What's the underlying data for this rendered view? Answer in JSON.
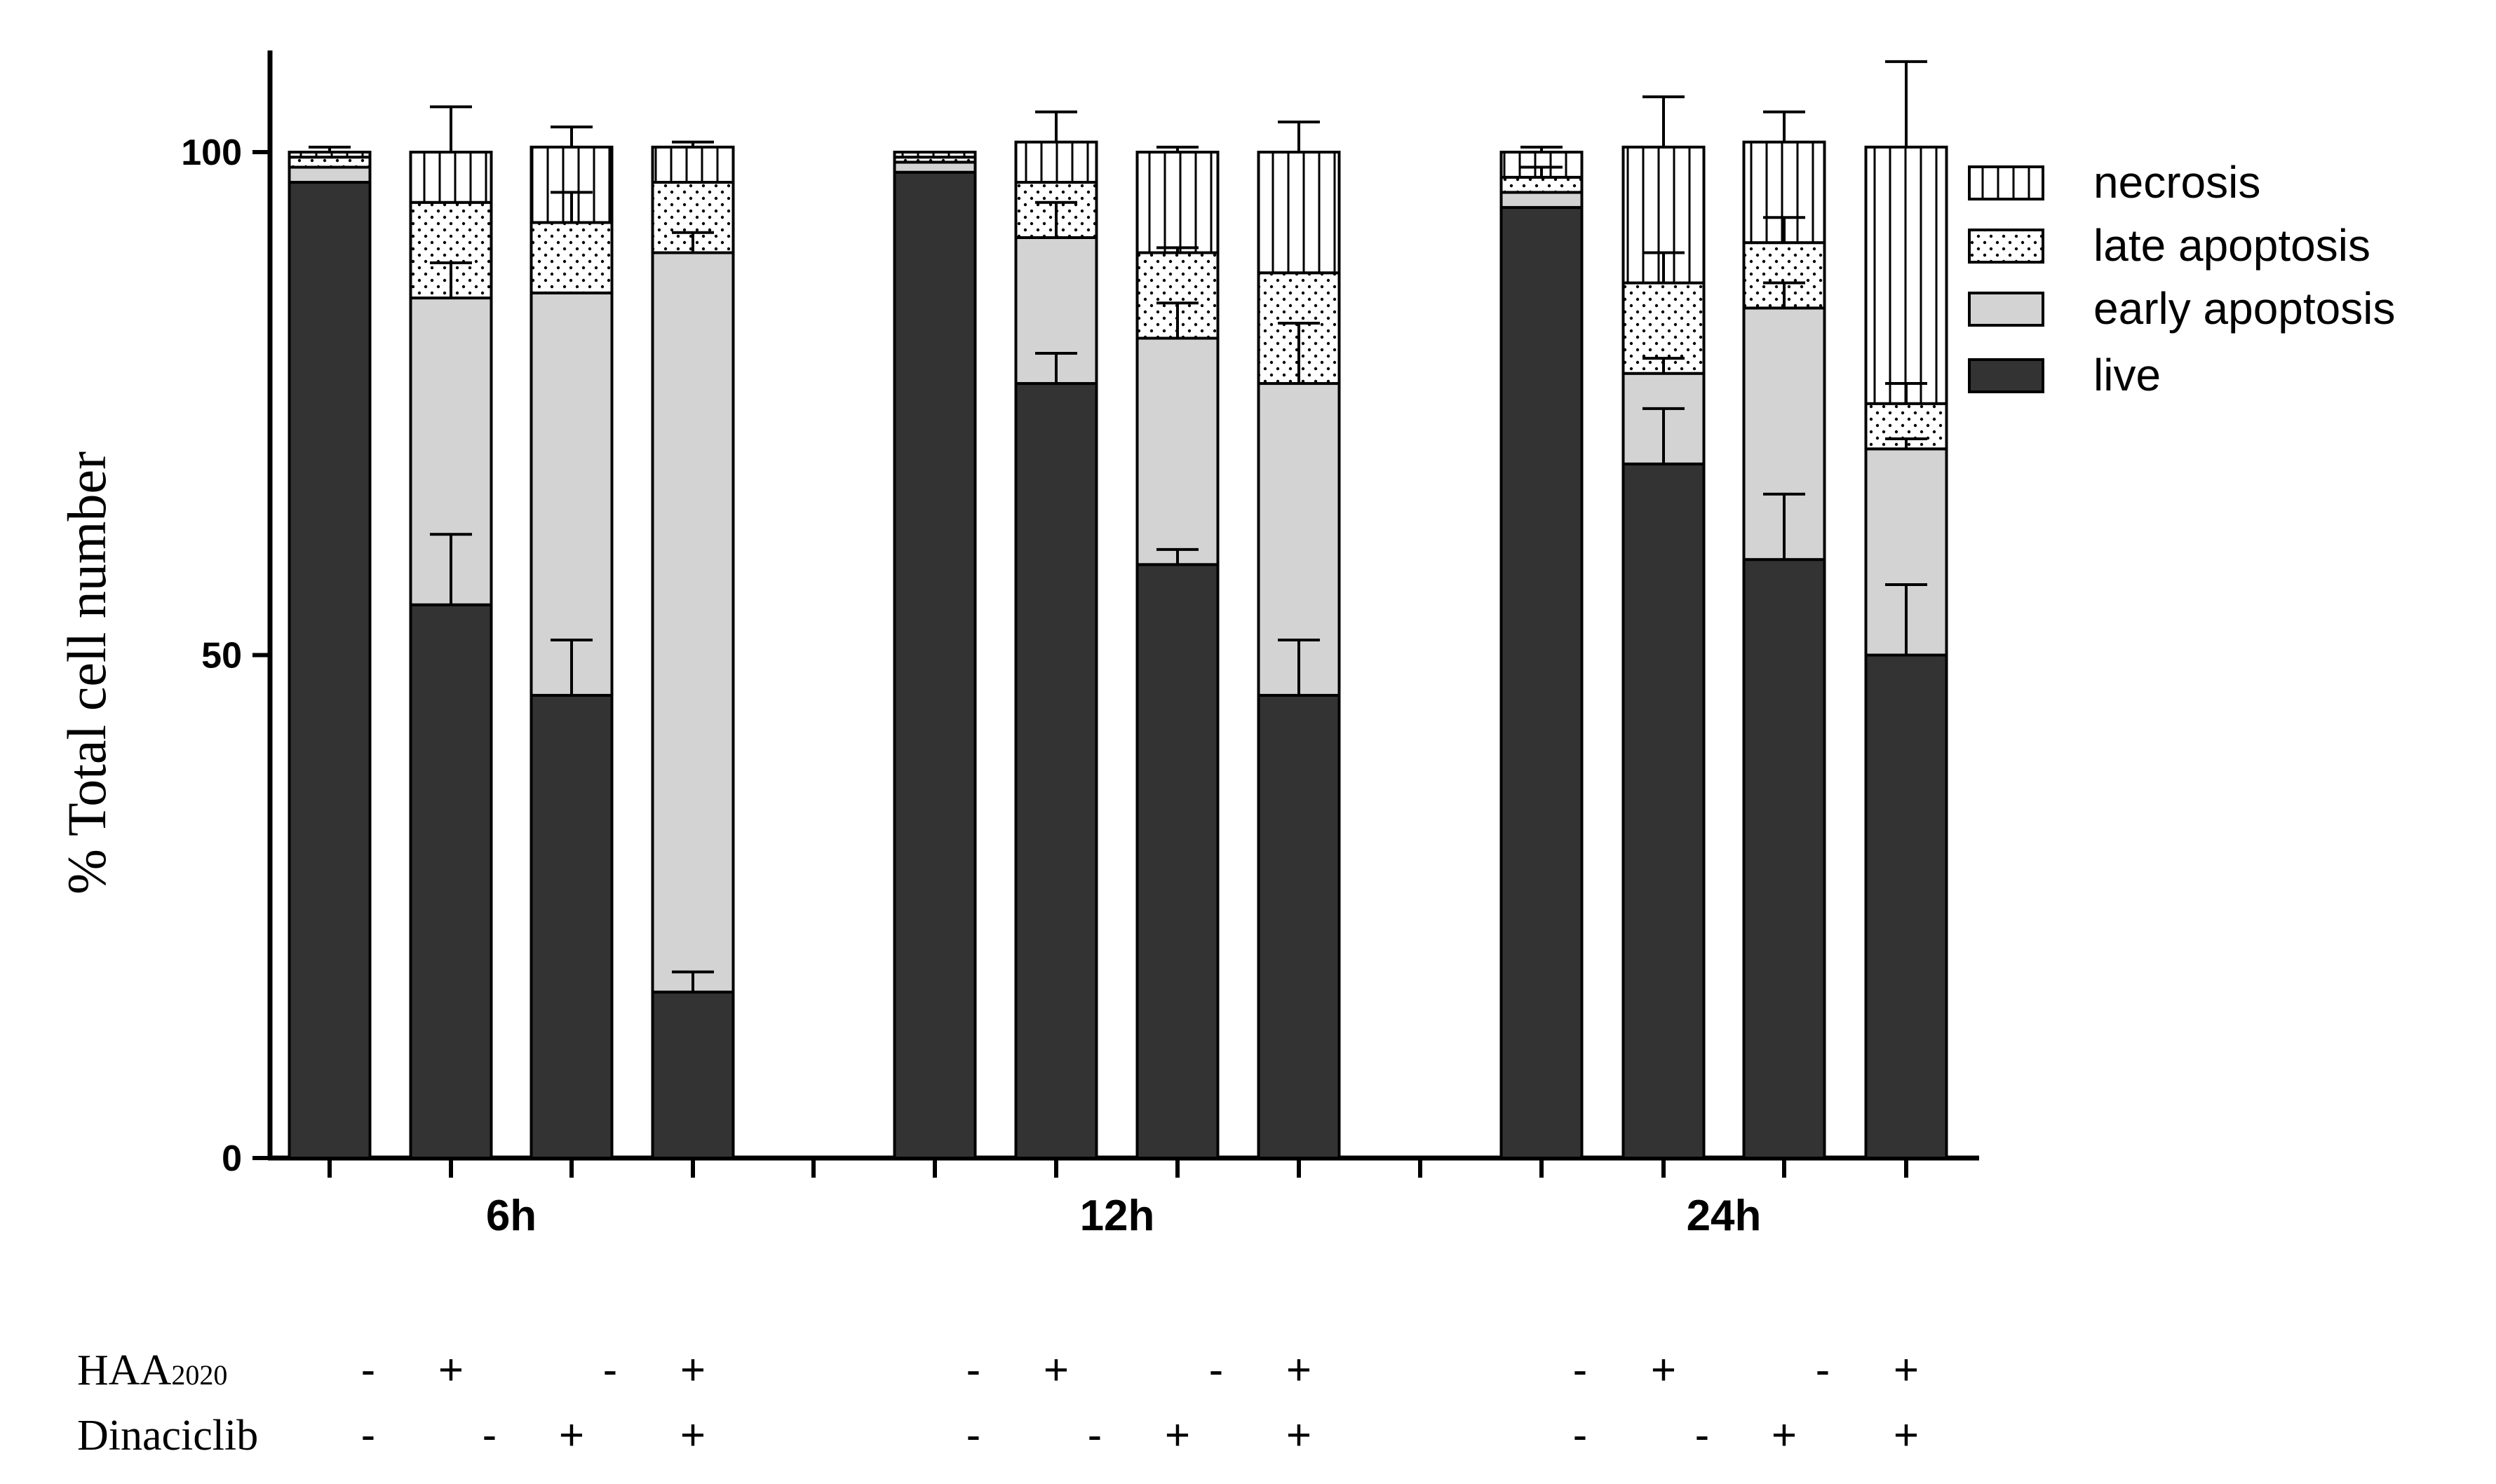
{
  "chart_data": {
    "type": "bar",
    "stacked": true,
    "ylabel": "% Total cell number",
    "ylim": [
      0,
      110
    ],
    "yticks": [
      0,
      50,
      100
    ],
    "groups": [
      "6h",
      "12h",
      "24h"
    ],
    "bars_per_group": 4,
    "conditions": [
      {
        "label": "HAA",
        "sub": "2020",
        "values": [
          "-",
          "+",
          "-",
          "+",
          "-",
          "+",
          "-",
          "+",
          "-",
          "+",
          "-",
          "+"
        ]
      },
      {
        "label": "Dinaciclib",
        "sub": "",
        "values": [
          "-",
          "-",
          "+",
          "+",
          "-",
          "-",
          "+",
          "+",
          "-",
          "-",
          "+",
          "+"
        ]
      }
    ],
    "series": [
      {
        "name": "live",
        "color": "#333333",
        "pattern": "solid",
        "values": [
          97,
          55,
          46,
          16.5,
          98,
          77,
          59,
          46,
          94.5,
          69,
          59.5,
          50
        ],
        "errors": [
          0,
          7,
          5.5,
          2,
          0,
          3,
          1.5,
          5.5,
          0,
          5.5,
          6.5,
          7
        ]
      },
      {
        "name": "early apoptosis",
        "color": "#d3d3d3",
        "pattern": "solid",
        "values": [
          1.5,
          30.5,
          40,
          73.5,
          1,
          14.5,
          22.5,
          31,
          1.5,
          9,
          25,
          20.5
        ],
        "errors": [
          0,
          3.5,
          0,
          2,
          0,
          3.5,
          3.5,
          6,
          0,
          1.5,
          2.5,
          1
        ]
      },
      {
        "name": "late apoptosis",
        "color": "#ffffff",
        "pattern": "dots",
        "values": [
          1,
          9.5,
          7,
          7,
          0.5,
          5.5,
          8.5,
          11,
          1.5,
          9,
          6.5,
          4.5
        ],
        "errors": [
          0,
          0,
          3,
          0,
          0,
          0,
          0.5,
          0,
          1,
          3,
          2.5,
          2
        ]
      },
      {
        "name": "necrosis",
        "color": "#ffffff",
        "pattern": "vlines",
        "values": [
          0.5,
          5,
          7.5,
          3.5,
          0.5,
          4,
          10,
          12,
          2.5,
          13.5,
          10,
          25.5
        ],
        "errors": [
          0.5,
          4.5,
          2,
          0.5,
          0,
          3,
          0.5,
          3,
          0.5,
          5,
          3,
          8.5
        ]
      }
    ],
    "legend_order": [
      "necrosis",
      "late apoptosis",
      "early apoptosis",
      "live"
    ],
    "legend_position": "top-right"
  }
}
